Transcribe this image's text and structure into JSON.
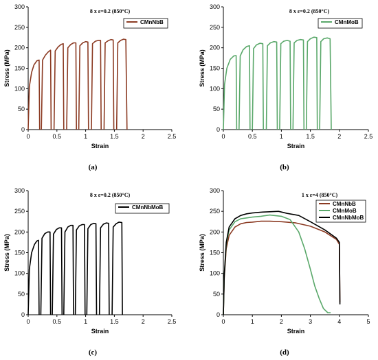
{
  "chart_data": [
    {
      "type": "line",
      "panel_label": "(a)",
      "annotation": "8 x ε=0.2 (850°C)",
      "xlabel": "Strain",
      "ylabel": "Stress (MPa)",
      "xlim": [
        0,
        2.5
      ],
      "ylim": [
        0,
        300
      ],
      "xticks": [
        "0",
        "0.5",
        "1",
        "1.5",
        "2",
        "2.5"
      ],
      "yticks": [
        "0",
        "50",
        "100",
        "150",
        "200",
        "250",
        "300"
      ],
      "legend_position": "top-right",
      "series": [
        {
          "name": "CMnNbB",
          "color": "#8b3a22",
          "passes": [
            {
              "x": [
                0,
                0.02,
                0.06,
                0.1,
                0.15,
                0.19,
                0.2
              ],
              "y": [
                0,
                105,
                140,
                158,
                168,
                170,
                0
              ]
            },
            {
              "x": [
                0.23,
                0.25,
                0.3,
                0.35,
                0.39,
                0.4
              ],
              "y": [
                0,
                170,
                182,
                190,
                194,
                0
              ]
            },
            {
              "x": [
                0.45,
                0.47,
                0.52,
                0.57,
                0.61,
                0.62
              ],
              "y": [
                0,
                192,
                202,
                208,
                210,
                0
              ]
            },
            {
              "x": [
                0.67,
                0.69,
                0.74,
                0.79,
                0.83,
                0.84
              ],
              "y": [
                0,
                200,
                208,
                212,
                212,
                0
              ]
            },
            {
              "x": [
                0.88,
                0.9,
                0.95,
                1.0,
                1.04,
                1.05
              ],
              "y": [
                0,
                205,
                212,
                215,
                214,
                0
              ]
            },
            {
              "x": [
                1.1,
                1.12,
                1.17,
                1.22,
                1.26,
                1.27
              ],
              "y": [
                0,
                210,
                216,
                218,
                218,
                0
              ]
            },
            {
              "x": [
                1.32,
                1.34,
                1.39,
                1.44,
                1.48,
                1.49
              ],
              "y": [
                0,
                212,
                217,
                220,
                219,
                0
              ]
            },
            {
              "x": [
                1.54,
                1.56,
                1.61,
                1.66,
                1.7,
                1.72
              ],
              "y": [
                0,
                212,
                218,
                221,
                220,
                0
              ]
            }
          ]
        }
      ]
    },
    {
      "type": "line",
      "panel_label": "(b)",
      "annotation": "8 x ε=0.2 (850°C)",
      "xlabel": "Strain",
      "ylabel": "Stress (MPa)",
      "xlim": [
        0,
        2.5
      ],
      "ylim": [
        0,
        300
      ],
      "xticks": [
        "0",
        "0.5",
        "1",
        "1.5",
        "2",
        "2.5"
      ],
      "yticks": [
        "0",
        "50",
        "100",
        "150",
        "200",
        "250",
        "300"
      ],
      "legend_position": "top-right",
      "series": [
        {
          "name": "CMnMoB",
          "color": "#5aa86a",
          "passes": [
            {
              "x": [
                0,
                0.02,
                0.06,
                0.12,
                0.18,
                0.22,
                0.23
              ],
              "y": [
                0,
                110,
                150,
                172,
                180,
                181,
                0
              ]
            },
            {
              "x": [
                0.27,
                0.29,
                0.34,
                0.4,
                0.45,
                0.46
              ],
              "y": [
                0,
                180,
                195,
                203,
                205,
                0
              ]
            },
            {
              "x": [
                0.5,
                0.52,
                0.57,
                0.63,
                0.68,
                0.69
              ],
              "y": [
                0,
                198,
                207,
                211,
                210,
                0
              ]
            },
            {
              "x": [
                0.74,
                0.76,
                0.81,
                0.87,
                0.92,
                0.93
              ],
              "y": [
                0,
                205,
                212,
                215,
                214,
                0
              ]
            },
            {
              "x": [
                0.97,
                0.99,
                1.04,
                1.1,
                1.15,
                1.16
              ],
              "y": [
                0,
                210,
                216,
                218,
                216,
                0
              ]
            },
            {
              "x": [
                1.2,
                1.22,
                1.27,
                1.33,
                1.38,
                1.39
              ],
              "y": [
                0,
                212,
                218,
                220,
                219,
                0
              ]
            },
            {
              "x": [
                1.43,
                1.45,
                1.5,
                1.56,
                1.61,
                1.62
              ],
              "y": [
                0,
                215,
                222,
                226,
                225,
                0
              ]
            },
            {
              "x": [
                1.66,
                1.68,
                1.73,
                1.79,
                1.84,
                1.86
              ],
              "y": [
                0,
                215,
                222,
                224,
                222,
                0
              ]
            }
          ]
        }
      ]
    },
    {
      "type": "line",
      "panel_label": "(c)",
      "annotation": "8 x ε=0.2 (850°C)",
      "xlabel": "Strain",
      "ylabel": "Stress (MPa)",
      "xlim": [
        0,
        2.5
      ],
      "ylim": [
        0,
        300
      ],
      "xticks": [
        "0",
        "0.5",
        "1",
        "1.5",
        "2",
        "2.5"
      ],
      "yticks": [
        "0",
        "50",
        "100",
        "150",
        "200",
        "250",
        "300"
      ],
      "legend_position": "top-right",
      "series": [
        {
          "name": "CMnNbMoB",
          "color": "#000000",
          "passes": [
            {
              "x": [
                0,
                0.02,
                0.06,
                0.11,
                0.15,
                0.18,
                0.19
              ],
              "y": [
                0,
                110,
                150,
                170,
                178,
                180,
                0
              ]
            },
            {
              "x": [
                0.22,
                0.24,
                0.29,
                0.34,
                0.38,
                0.39
              ],
              "y": [
                0,
                185,
                196,
                200,
                200,
                0
              ]
            },
            {
              "x": [
                0.42,
                0.44,
                0.49,
                0.54,
                0.58,
                0.59
              ],
              "y": [
                0,
                195,
                206,
                210,
                210,
                0
              ]
            },
            {
              "x": [
                0.62,
                0.64,
                0.69,
                0.74,
                0.78,
                0.79
              ],
              "y": [
                0,
                200,
                212,
                216,
                216,
                0
              ]
            },
            {
              "x": [
                0.82,
                0.84,
                0.89,
                0.94,
                0.98,
                0.99
              ],
              "y": [
                0,
                205,
                215,
                218,
                218,
                0
              ]
            },
            {
              "x": [
                1.02,
                1.04,
                1.09,
                1.14,
                1.18,
                1.19
              ],
              "y": [
                0,
                208,
                218,
                221,
                220,
                0
              ]
            },
            {
              "x": [
                1.24,
                1.26,
                1.31,
                1.36,
                1.4,
                1.41
              ],
              "y": [
                0,
                210,
                219,
                222,
                221,
                0
              ]
            },
            {
              "x": [
                1.46,
                1.48,
                1.53,
                1.58,
                1.63,
                1.64
              ],
              "y": [
                0,
                212,
                220,
                224,
                223,
                0
              ]
            }
          ]
        }
      ]
    },
    {
      "type": "line",
      "panel_label": "(d)",
      "annotation": "1 x ε=4 (850°C)",
      "xlabel": "Strain",
      "ylabel": "Stress (MPa)",
      "xlim": [
        0,
        5
      ],
      "ylim": [
        0,
        300
      ],
      "xticks": [
        "0",
        "1",
        "2",
        "3",
        "4",
        "5"
      ],
      "yticks": [
        "0",
        "50",
        "100",
        "150",
        "200",
        "250",
        "300"
      ],
      "legend_position": "top-right",
      "series": [
        {
          "name": "CMnNbB",
          "color": "#8b3a22",
          "passes": [
            {
              "x": [
                0,
                0.03,
                0.1,
                0.2,
                0.4,
                0.6,
                0.8,
                1.0,
                1.3,
                1.6,
                2.0,
                2.5,
                3.0,
                3.5,
                3.9,
                4.0,
                4.02
              ],
              "y": [
                0,
                90,
                160,
                192,
                212,
                220,
                223,
                224,
                226,
                226,
                225,
                222,
                214,
                200,
                182,
                170,
                30
              ]
            }
          ]
        },
        {
          "name": "CMnMoB",
          "color": "#5aa86a",
          "passes": [
            {
              "x": [
                0,
                0.03,
                0.1,
                0.2,
                0.4,
                0.6,
                0.8,
                1.0,
                1.3,
                1.6,
                2.0,
                2.3,
                2.6,
                2.8,
                3.0,
                3.15,
                3.3,
                3.45,
                3.6,
                3.7
              ],
              "y": [
                0,
                95,
                170,
                205,
                225,
                232,
                234,
                236,
                238,
                241,
                238,
                230,
                200,
                160,
                110,
                70,
                40,
                15,
                5,
                5
              ]
            }
          ]
        },
        {
          "name": "CMnNbMoB",
          "color": "#000000",
          "passes": [
            {
              "x": [
                0,
                0.03,
                0.1,
                0.2,
                0.4,
                0.6,
                0.8,
                1.0,
                1.3,
                1.6,
                1.9,
                2.2,
                2.6,
                3.0,
                3.5,
                3.9,
                4.0,
                4.02
              ],
              "y": [
                0,
                95,
                175,
                212,
                232,
                240,
                244,
                246,
                248,
                249,
                250,
                245,
                240,
                225,
                205,
                185,
                175,
                25
              ]
            }
          ]
        }
      ]
    }
  ]
}
